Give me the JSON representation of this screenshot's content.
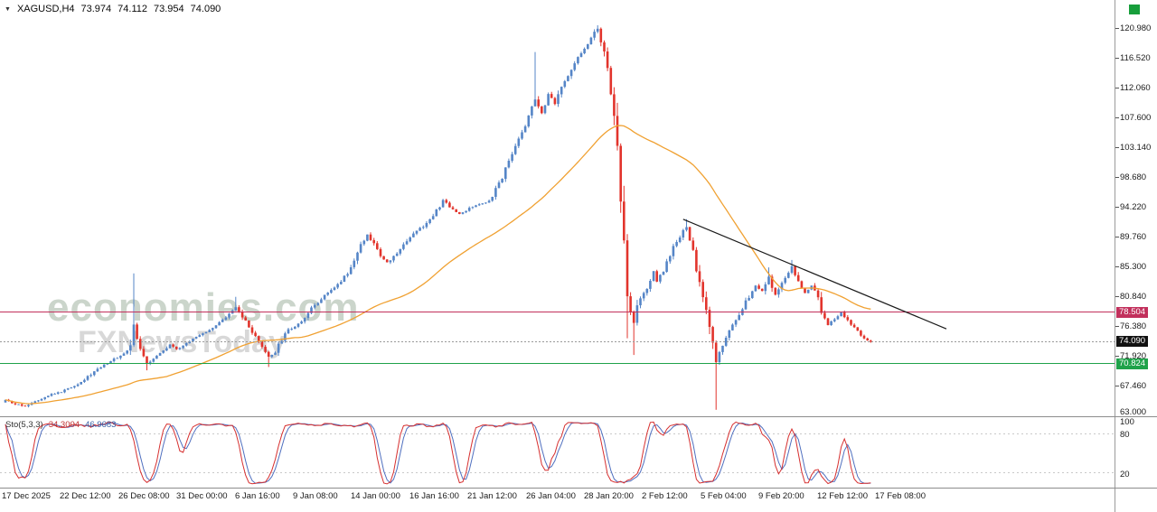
{
  "header": {
    "collapse_arrow": "▼",
    "symbol_period": "XAGUSD,H4",
    "open": "73.974",
    "high": "74.112",
    "low": "73.954",
    "close": "74.090"
  },
  "watermark": {
    "brand": "economies.com",
    "subtitle": "FXNewsToday"
  },
  "price_axis": {
    "labels": [
      "120.980",
      "116.520",
      "112.060",
      "107.600",
      "103.140",
      "98.680",
      "94.220",
      "89.760",
      "85.300",
      "80.840",
      "76.380",
      "71.920",
      "67.460",
      "63.000"
    ],
    "boxed_labels": [
      {
        "text": "78.504",
        "price": 78.504,
        "bg": "#c2305c"
      },
      {
        "text": "74.090",
        "price": 74.09,
        "bg": "#111111"
      },
      {
        "text": "70.824",
        "price": 70.824,
        "bg": "#1fa24a"
      }
    ]
  },
  "time_axis": {
    "labels": [
      "17 Dec 2025",
      "22 Dec 12:00",
      "26 Dec 08:00",
      "31 Dec 00:00",
      "6 Jan 16:00",
      "9 Jan 08:00",
      "14 Jan 00:00",
      "16 Jan 16:00",
      "21 Jan 12:00",
      "26 Jan 04:00",
      "28 Jan 20:00",
      "2 Feb 12:00",
      "5 Feb 04:00",
      "9 Feb 20:00",
      "12 Feb 12:00",
      "17 Feb 08:00"
    ]
  },
  "indicator_panel": {
    "name": "Sto(5,3,3)",
    "main_value": "34.3004",
    "signal_value": "46.9683",
    "scale_labels": [
      "100",
      "80",
      "20"
    ]
  },
  "chart_data": {
    "type": "candlestick",
    "symbol": "XAGUSD",
    "timeframe": "H4",
    "title": "XAGUSD,H4 73.974 74.112 73.954 74.090",
    "quote": {
      "open": 73.974,
      "high": 74.112,
      "low": 73.954,
      "close": 74.09
    },
    "price_axis_range": [
      63.0,
      120.98
    ],
    "candles_count": 264,
    "ma_period": 50,
    "current_price": 74.09,
    "hlines": [
      {
        "price": 78.504,
        "color": "#c2305c"
      },
      {
        "price": 70.824,
        "color": "#1fa24a"
      }
    ],
    "trendline": {
      "from": [
        206,
        92.4
      ],
      "to": [
        286,
        76.0
      ]
    },
    "colors": {
      "up": "#5585c7",
      "down": "#e2342c",
      "ma": "#f0a132",
      "sto_main": "#d62f2f",
      "sto_signal": "#4f6fbf"
    },
    "stochastic": {
      "k": 5,
      "slowing": 3,
      "d": 3,
      "levels": [
        80,
        20
      ],
      "range": [
        0,
        100
      ],
      "main_value": 34.3004,
      "signal_value": 46.9683
    },
    "price_path": [
      [
        0,
        65.3
      ],
      [
        3,
        64.7
      ],
      [
        6,
        64.5
      ],
      [
        9,
        65.2
      ],
      [
        13,
        66.1
      ],
      [
        17,
        66.6
      ],
      [
        20,
        67.3
      ],
      [
        23,
        68.1
      ],
      [
        26,
        69.2
      ],
      [
        29,
        70.4
      ],
      [
        32,
        71.2
      ],
      [
        35,
        72.0
      ],
      [
        38,
        73.2
      ],
      [
        39,
        76.6
      ],
      [
        40,
        74.5
      ],
      [
        41,
        73.2
      ],
      [
        43,
        70.9
      ],
      [
        45,
        71.6
      ],
      [
        47,
        72.4
      ],
      [
        50,
        73.6
      ],
      [
        52,
        72.9
      ],
      [
        55,
        73.8
      ],
      [
        58,
        74.8
      ],
      [
        61,
        75.6
      ],
      [
        64,
        76.6
      ],
      [
        67,
        77.6
      ],
      [
        70,
        79.2
      ],
      [
        72,
        77.8
      ],
      [
        74,
        76.2
      ],
      [
        77,
        73.9
      ],
      [
        80,
        71.8
      ],
      [
        82,
        72.6
      ],
      [
        84,
        74.4
      ],
      [
        86,
        75.8
      ],
      [
        88,
        76.4
      ],
      [
        90,
        77.2
      ],
      [
        93,
        79.0
      ],
      [
        96,
        80.6
      ],
      [
        99,
        81.8
      ],
      [
        102,
        83.2
      ],
      [
        105,
        85.0
      ],
      [
        108,
        88.4
      ],
      [
        110,
        90.2
      ],
      [
        112,
        88.6
      ],
      [
        114,
        87.0
      ],
      [
        116,
        85.9
      ],
      [
        118,
        86.8
      ],
      [
        121,
        88.6
      ],
      [
        124,
        90.4
      ],
      [
        127,
        91.4
      ],
      [
        130,
        92.8
      ],
      [
        133,
        95.2
      ],
      [
        135,
        94.2
      ],
      [
        138,
        93.2
      ],
      [
        141,
        94.0
      ],
      [
        144,
        94.6
      ],
      [
        147,
        95.2
      ],
      [
        150,
        97.6
      ],
      [
        153,
        101.2
      ],
      [
        156,
        104.6
      ],
      [
        158,
        106.4
      ],
      [
        161,
        110.4
      ],
      [
        163,
        108.2
      ],
      [
        165,
        111.0
      ],
      [
        167,
        109.6
      ],
      [
        169,
        112.0
      ],
      [
        171,
        114.0
      ],
      [
        173,
        115.8
      ],
      [
        175,
        117.2
      ],
      [
        177,
        118.8
      ],
      [
        180,
        120.9
      ],
      [
        182,
        117.2
      ],
      [
        184,
        111.6
      ],
      [
        186,
        103.8
      ],
      [
        187,
        96.8
      ],
      [
        188,
        88.2
      ],
      [
        189,
        79.6
      ],
      [
        190,
        78.4
      ],
      [
        191,
        77.0
      ],
      [
        192,
        79.2
      ],
      [
        193,
        80.6
      ],
      [
        195,
        82.2
      ],
      [
        197,
        84.6
      ],
      [
        198,
        83.2
      ],
      [
        200,
        84.8
      ],
      [
        202,
        87.0
      ],
      [
        204,
        89.2
      ],
      [
        206,
        90.6
      ],
      [
        207,
        91.4
      ],
      [
        208,
        89.6
      ],
      [
        209,
        87.4
      ],
      [
        210,
        85.0
      ],
      [
        211,
        82.6
      ],
      [
        212,
        80.2
      ],
      [
        213,
        78.6
      ],
      [
        214,
        76.2
      ],
      [
        215,
        73.6
      ],
      [
        216,
        70.9
      ],
      [
        217,
        72.4
      ],
      [
        218,
        73.6
      ],
      [
        220,
        75.6
      ],
      [
        222,
        77.2
      ],
      [
        224,
        79.2
      ],
      [
        226,
        80.9
      ],
      [
        228,
        82.4
      ],
      [
        230,
        81.6
      ],
      [
        232,
        83.9
      ],
      [
        233,
        82.2
      ],
      [
        234,
        81.2
      ],
      [
        235,
        82.0
      ],
      [
        236,
        83.0
      ],
      [
        238,
        84.4
      ],
      [
        239,
        85.5
      ],
      [
        240,
        84.0
      ],
      [
        241,
        82.9
      ],
      [
        243,
        81.4
      ],
      [
        245,
        82.4
      ],
      [
        247,
        80.9
      ],
      [
        248,
        78.2
      ],
      [
        250,
        76.5
      ],
      [
        252,
        77.6
      ],
      [
        254,
        78.4
      ],
      [
        256,
        77.1
      ],
      [
        258,
        76.1
      ],
      [
        260,
        75.0
      ],
      [
        262,
        74.3
      ],
      [
        263,
        74.09
      ]
    ],
    "spikes": [
      {
        "i": 39,
        "high": 84.3
      },
      {
        "i": 43,
        "low": 69.8
      },
      {
        "i": 70,
        "high": 80.8
      },
      {
        "i": 80,
        "low": 70.3
      },
      {
        "i": 161,
        "high": 117.4
      },
      {
        "i": 180,
        "high": 121.4
      },
      {
        "i": 189,
        "low": 74.6
      },
      {
        "i": 191,
        "low": 72.1
      },
      {
        "i": 207,
        "high": 92.4
      },
      {
        "i": 216,
        "low": 63.9
      },
      {
        "i": 232,
        "high": 85.2
      },
      {
        "i": 239,
        "high": 86.3
      }
    ]
  }
}
